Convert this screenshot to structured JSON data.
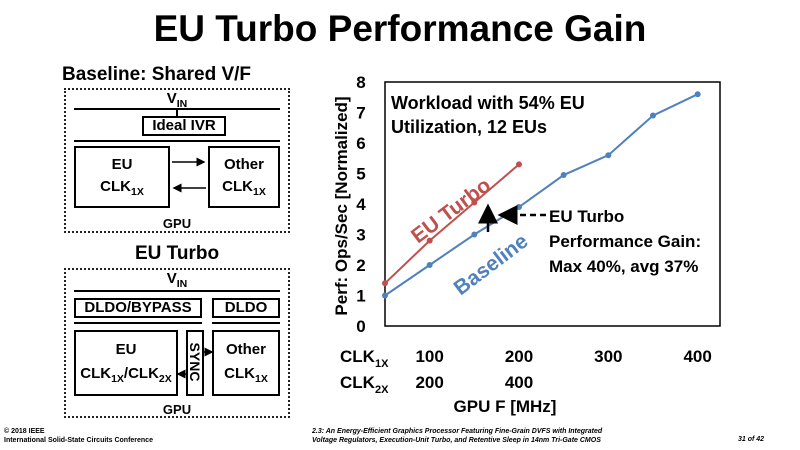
{
  "slide": {
    "title": "EU Turbo Performance Gain"
  },
  "baseline_diagram": {
    "title": "Baseline: Shared V/F",
    "vin": "V",
    "vin_sub": "IN",
    "ivr": "Ideal IVR",
    "eu_line1": "EU",
    "eu_clk": "CLK",
    "eu_clk_sub": "1X",
    "other_line1": "Other",
    "other_clk": "CLK",
    "other_clk_sub": "1X",
    "gpu": "GPU"
  },
  "turbo_diagram": {
    "title": "EU Turbo",
    "vin": "V",
    "vin_sub": "IN",
    "dldo_bypass": "DLDO/BYPASS",
    "dldo": "DLDO",
    "sync": "SYNC",
    "eu_line1": "EU",
    "eu_clk1": "CLK",
    "eu_clk1_sub": "1X",
    "eu_sep": "/",
    "eu_clk2": "CLK",
    "eu_clk2_sub": "2X",
    "other_line1": "Other",
    "other_clk": "CLK",
    "other_clk_sub": "1X",
    "gpu": "GPU"
  },
  "chart_data": {
    "type": "line",
    "ylabel": "Perf: Ops/Sec [Normalized]",
    "xlabel": "GPU F [MHz]",
    "ylim": [
      0,
      8
    ],
    "yticks": [
      "0",
      "1",
      "2",
      "3",
      "4",
      "5",
      "6",
      "7",
      "8"
    ],
    "xlim": [
      50,
      425
    ],
    "clk1x_label": "CLK",
    "clk1x_sub": "1X",
    "clk2x_label": "CLK",
    "clk2x_sub": "2X",
    "clk1x_ticks": [
      {
        "x": 100,
        "label": "100"
      },
      {
        "x": 200,
        "label": "200"
      },
      {
        "x": 300,
        "label": "300"
      },
      {
        "x": 400,
        "label": "400"
      }
    ],
    "clk2x_ticks": [
      {
        "x": 100,
        "label": "200"
      },
      {
        "x": 200,
        "label": "400"
      }
    ],
    "grid": false,
    "annotation": {
      "line1": "Workload with 54% EU",
      "line2": "Utilization, 12 EUs"
    },
    "gain_annotation": {
      "line1": "EU Turbo",
      "line2": "Performance Gain:",
      "line3": "Max 40%, avg 37%"
    },
    "series": [
      {
        "name": "EU Turbo",
        "color": "#c0504d",
        "x": [
          50,
          100,
          150,
          200
        ],
        "y": [
          1.4,
          2.8,
          4.05,
          5.3
        ]
      },
      {
        "name": "Baseline",
        "color": "#4f81bd",
        "x": [
          50,
          100,
          150,
          200,
          250,
          300,
          350,
          400
        ],
        "y": [
          1.0,
          2.0,
          3.0,
          3.9,
          4.95,
          5.6,
          6.9,
          7.6
        ]
      }
    ]
  },
  "footer": {
    "copyright": "© 2018 IEEE",
    "conference": "International Solid-State Circuits Conference",
    "paper_line1": "2.3: An Energy-Efficient Graphics Processor Featuring Fine-Grain DVFS with Integrated",
    "paper_line2": "Voltage Regulators, Execution-Unit Turbo, and Retentive Sleep in 14nm Tri-Gate CMOS",
    "page": "31 of 42"
  }
}
